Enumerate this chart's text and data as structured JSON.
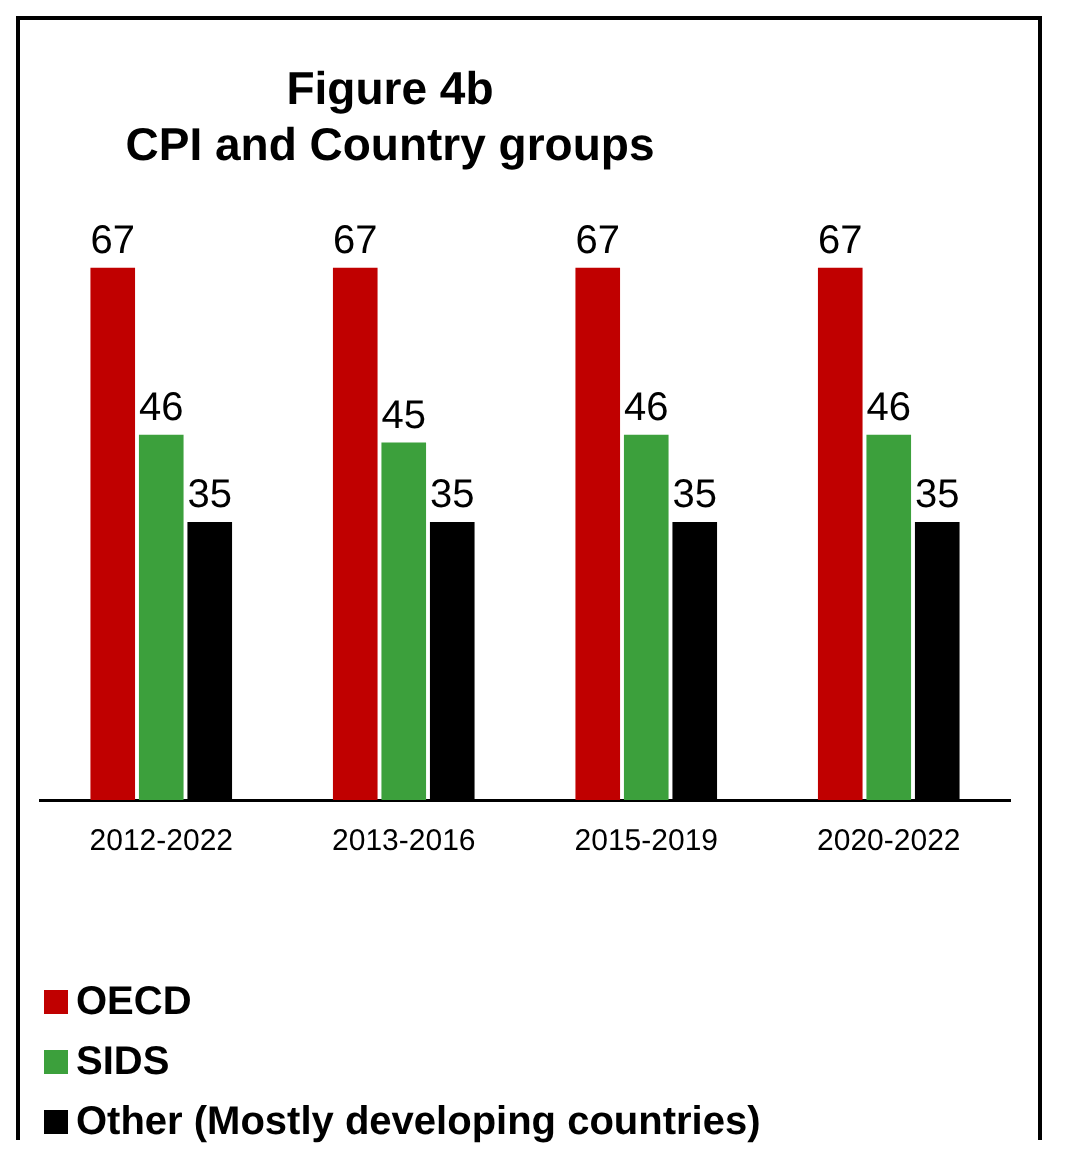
{
  "chart_data": {
    "type": "bar",
    "title": "Figure 4b\nCPI and Country groups",
    "categories": [
      "2012-2022",
      "2013-2016",
      "2015-2019",
      "2020-2022"
    ],
    "series": [
      {
        "name": "OECD",
        "color": "#c00000",
        "values": [
          67,
          67,
          67,
          67
        ]
      },
      {
        "name": "SIDS",
        "color": "#3ca03c",
        "values": [
          46,
          45,
          46,
          46
        ]
      },
      {
        "name": "Other (Mostly developing countries)",
        "color": "#000000",
        "values": [
          35,
          35,
          35,
          35
        ]
      }
    ],
    "data_labels": true,
    "grid": false,
    "legend": "bottom left"
  }
}
